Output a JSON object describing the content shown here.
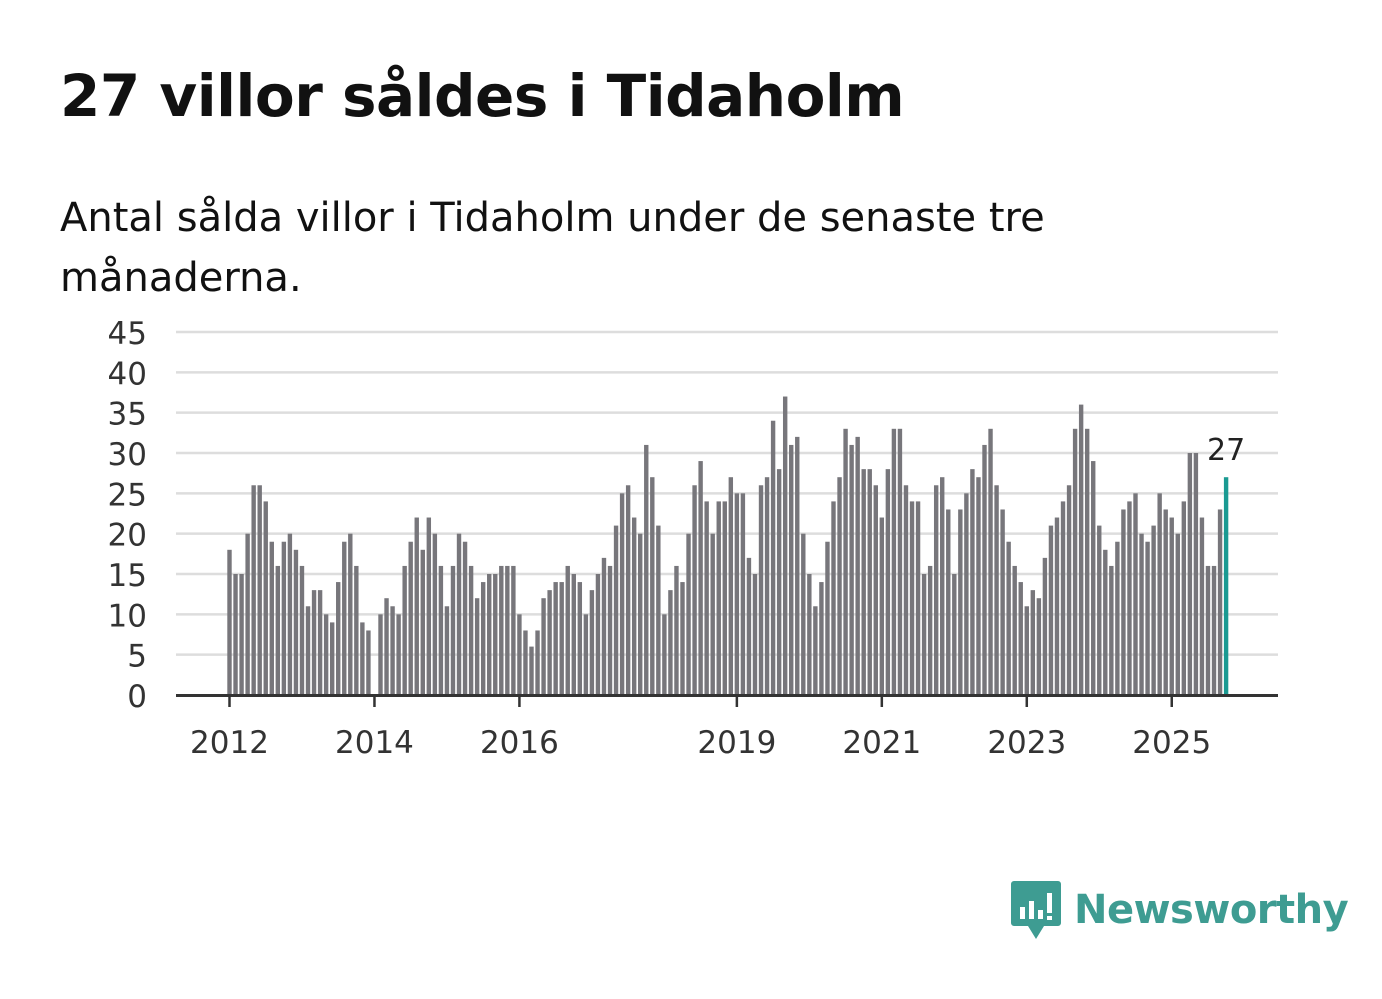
{
  "title": "27 villor såldes i Tidaholm",
  "subtitle": "Antal sålda villor i Tidaholm under de senaste tre månaderna.",
  "brand": {
    "name": "Newsworthy",
    "icon": "newsworthy-logo-icon",
    "color": "#3e9c92"
  },
  "chart_data": {
    "type": "bar",
    "title": "",
    "xlabel": "",
    "ylabel": "",
    "ylim": [
      0,
      45
    ],
    "yticks": [
      0,
      5,
      10,
      15,
      20,
      25,
      30,
      35,
      40,
      45
    ],
    "xticks": [
      {
        "label": "2012",
        "index": 0
      },
      {
        "label": "2014",
        "index": 24
      },
      {
        "label": "2016",
        "index": 48
      },
      {
        "label": "2019",
        "index": 84
      },
      {
        "label": "2021",
        "index": 108
      },
      {
        "label": "2023",
        "index": 132
      },
      {
        "label": "2025",
        "index": 156
      }
    ],
    "grid": true,
    "bar_color": "#77767b",
    "highlight_color": "#1a9a92",
    "highlight_label": "27",
    "series": [
      {
        "values": [
          18,
          15,
          15,
          20,
          26,
          26,
          24,
          19,
          16,
          19,
          20,
          18,
          16,
          11,
          13,
          13,
          10,
          9,
          14,
          19,
          20,
          16,
          9,
          8,
          0,
          10,
          12,
          11,
          10,
          16,
          19,
          22,
          18,
          22,
          20,
          16,
          11,
          16,
          20,
          19,
          16,
          12,
          14,
          15,
          15,
          16,
          16,
          16,
          10,
          8,
          6,
          8,
          12,
          13,
          14,
          14,
          16,
          15,
          14,
          10,
          13,
          15,
          17,
          16,
          21,
          25,
          26,
          22,
          20,
          31,
          27,
          21,
          10,
          13,
          16,
          14,
          20,
          26,
          29,
          24,
          20,
          24,
          24,
          27,
          25,
          25,
          17,
          15,
          26,
          27,
          34,
          28,
          37,
          31,
          32,
          20,
          15,
          11,
          14,
          19,
          24,
          27,
          33,
          31,
          32,
          28,
          28,
          26,
          22,
          28,
          33,
          33,
          26,
          24,
          24,
          15,
          16,
          26,
          27,
          23,
          15,
          23,
          25,
          28,
          27,
          31,
          33,
          26,
          23,
          19,
          16,
          14,
          11,
          13,
          12,
          17,
          21,
          22,
          24,
          26,
          33,
          36,
          33,
          29,
          21,
          18,
          16,
          19,
          23,
          24,
          25,
          20,
          19,
          21,
          25,
          23,
          22,
          20,
          24,
          30,
          30,
          22,
          16,
          16,
          23,
          27
        ]
      }
    ]
  }
}
